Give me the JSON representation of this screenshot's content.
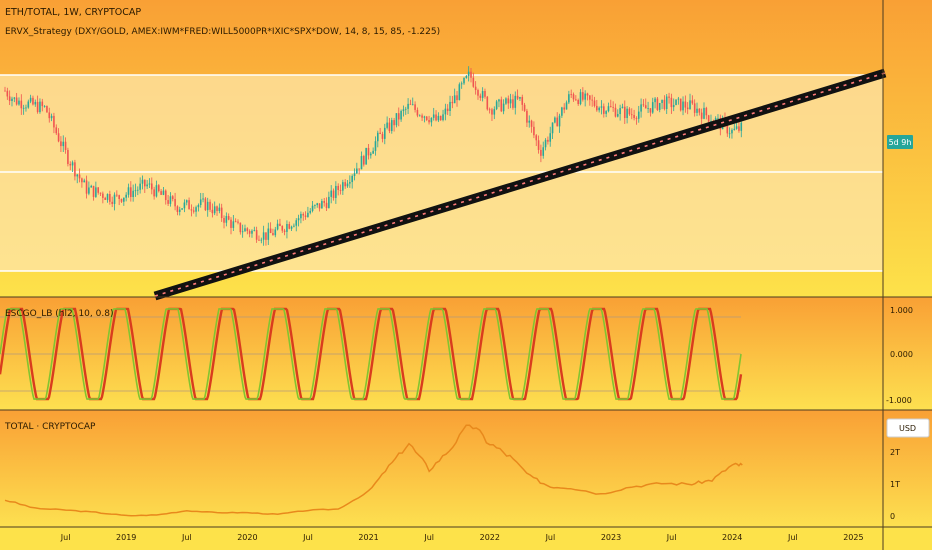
{
  "header": {
    "symbol_line": "ETH/TOTAL, 1W, CRYPTOCAP",
    "strategy_line": "ERVX_Strategy (DXY/GOLD, AMEX:IWM*FRED:WILL5000PR*IXIC*SPX*DOW, 14, 8, 15, 85, -1.225)",
    "countdown_badge": "5d 9h"
  },
  "colors": {
    "bg_top": "#f9a035",
    "bg_bottom": "#fde24a",
    "channel_fill": "#fde6a8",
    "candle_up": "#26a69a",
    "candle_down": "#ef5350",
    "osc_red": "#d93c1e",
    "osc_green": "#82c430",
    "total_line": "#e8891c",
    "badge": "#26a69a",
    "trend_line": "#111111",
    "trend_dash": "#ff6b6b"
  },
  "oscillator": {
    "label": "ESCGO_LB (hl2, 10, 0.8)",
    "axis_labels": [
      "1.000",
      "0.000",
      "-1.000"
    ],
    "levels": [
      1,
      0,
      -1
    ]
  },
  "total_panel": {
    "label": "TOTAL · CRYPTOCAP",
    "axis_labels": [
      "2T",
      "1T",
      "0"
    ],
    "currency_button": "USD"
  },
  "time_axis": {
    "labels": [
      "Jul",
      "2019",
      "Jul",
      "2020",
      "Jul",
      "2021",
      "Jul",
      "2022",
      "Jul",
      "2023",
      "Jul",
      "2024",
      "Jul",
      "2025"
    ]
  },
  "chart_data": [
    {
      "type": "candlestick",
      "title": "ETH/TOTAL, 1W, CRYPTOCAP",
      "x_range": [
        "2018-01",
        "2025-08"
      ],
      "channel_top": "upper horizontal line",
      "anchors_date": [
        "2018-01",
        "2018-02",
        "2018-05",
        "2018-07",
        "2018-09",
        "2018-12",
        "2019-03",
        "2019-06",
        "2019-09",
        "2019-12",
        "2020-03",
        "2020-06",
        "2020-09",
        "2020-12",
        "2021-02",
        "2021-05",
        "2021-08",
        "2021-11",
        "2022-01",
        "2022-04",
        "2022-06",
        "2022-09",
        "2022-12",
        "2023-03",
        "2023-06",
        "2023-09",
        "2023-11",
        "2024-01",
        "2024-02"
      ],
      "anchors_price": [
        0.92,
        0.87,
        0.83,
        0.6,
        0.42,
        0.37,
        0.44,
        0.33,
        0.34,
        0.22,
        0.18,
        0.27,
        0.36,
        0.54,
        0.68,
        0.84,
        0.76,
        1.0,
        0.83,
        0.87,
        0.61,
        0.9,
        0.84,
        0.8,
        0.86,
        0.84,
        0.78,
        0.71,
        0.73
      ],
      "series": [
        {
          "name": "ETH/TOTAL"
        }
      ]
    },
    {
      "type": "line",
      "title": "ESCGO_LB (hl2, 10, 0.8)",
      "ylim": [
        -1,
        1
      ],
      "ticks": [
        "1.000",
        "0.000",
        "-1.000"
      ],
      "cycles": 14,
      "series": [
        {
          "name": "fast"
        },
        {
          "name": "slow"
        }
      ]
    },
    {
      "type": "line",
      "title": "TOTAL · CRYPTOCAP",
      "yticks": [
        "2T",
        "1T",
        "0"
      ],
      "ylim": [
        0,
        3
      ],
      "x": [
        "2018-01",
        "2018-04",
        "2018-07",
        "2018-10",
        "2019-01",
        "2019-04",
        "2019-07",
        "2019-10",
        "2020-01",
        "2020-04",
        "2020-07",
        "2020-10",
        "2021-01",
        "2021-03",
        "2021-05",
        "2021-07",
        "2021-09",
        "2021-11",
        "2022-01",
        "2022-03",
        "2022-05",
        "2022-07",
        "2022-09",
        "2022-12",
        "2023-03",
        "2023-06",
        "2023-09",
        "2023-11",
        "2024-01",
        "2024-02"
      ],
      "values": [
        0.6,
        0.35,
        0.3,
        0.23,
        0.13,
        0.15,
        0.28,
        0.22,
        0.22,
        0.17,
        0.29,
        0.33,
        0.85,
        1.6,
        2.3,
        1.5,
        2.1,
        2.9,
        2.3,
        1.9,
        1.3,
        1.0,
        0.97,
        0.78,
        1.0,
        1.1,
        1.08,
        1.2,
        1.65,
        1.65
      ]
    }
  ]
}
